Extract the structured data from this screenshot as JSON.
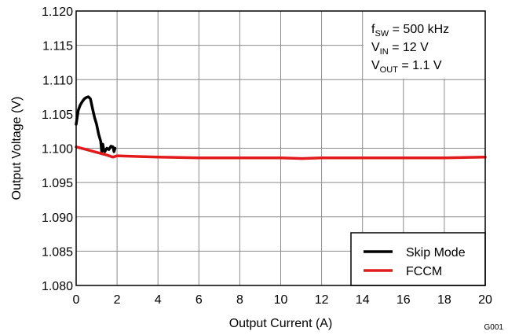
{
  "chart_data": {
    "type": "line",
    "title": "",
    "xlabel": "Output Current (A)",
    "ylabel": "Output Voltage (V)",
    "xlim": [
      0,
      20
    ],
    "ylim": [
      1.08,
      1.12
    ],
    "x_ticks": [
      "0",
      "2",
      "4",
      "6",
      "8",
      "10",
      "12",
      "14",
      "16",
      "18",
      "20"
    ],
    "y_ticks": [
      "1.080",
      "1.085",
      "1.090",
      "1.095",
      "1.100",
      "1.105",
      "1.110",
      "1.115",
      "1.120"
    ],
    "grid": true,
    "legend_position": "bottom-right",
    "annotations": [
      {
        "main": "f",
        "sub": "SW",
        "rest": " = 500 kHz"
      },
      {
        "main": "V",
        "sub": "IN",
        "rest": " = 12 V"
      },
      {
        "main": "V",
        "sub": "OUT",
        "rest": " = 1.1 V"
      }
    ],
    "figure_id": "G001",
    "series": [
      {
        "name": "Skip Mode",
        "color": "#000000",
        "x": [
          0.0,
          0.1,
          0.2,
          0.3,
          0.4,
          0.5,
          0.6,
          0.7,
          0.8,
          0.9,
          1.0,
          1.1,
          1.2,
          1.25,
          1.3,
          1.35,
          1.4,
          1.5,
          1.6,
          1.7,
          1.8,
          1.85,
          1.9
        ],
        "y": [
          1.1035,
          1.1055,
          1.1063,
          1.1068,
          1.1072,
          1.1074,
          1.1075,
          1.1072,
          1.1058,
          1.1045,
          1.1035,
          1.102,
          1.101,
          1.0994,
          1.1006,
          1.0997,
          1.0995,
          1.1,
          1.0998,
          1.1003,
          1.1002,
          1.0995,
          1.1
        ]
      },
      {
        "name": "FCCM",
        "color": "#e31a1c",
        "x": [
          0.0,
          0.5,
          1.0,
          1.5,
          1.8,
          2.0,
          3.0,
          4.0,
          6.0,
          8.0,
          10.0,
          11.0,
          12.0,
          14.0,
          16.0,
          18.0,
          20.0
        ],
        "y": [
          1.1002,
          1.0998,
          1.0994,
          1.099,
          1.0987,
          1.0989,
          1.0988,
          1.0987,
          1.0986,
          1.0986,
          1.0986,
          1.0985,
          1.0986,
          1.0986,
          1.0986,
          1.0986,
          1.0987
        ]
      }
    ]
  }
}
